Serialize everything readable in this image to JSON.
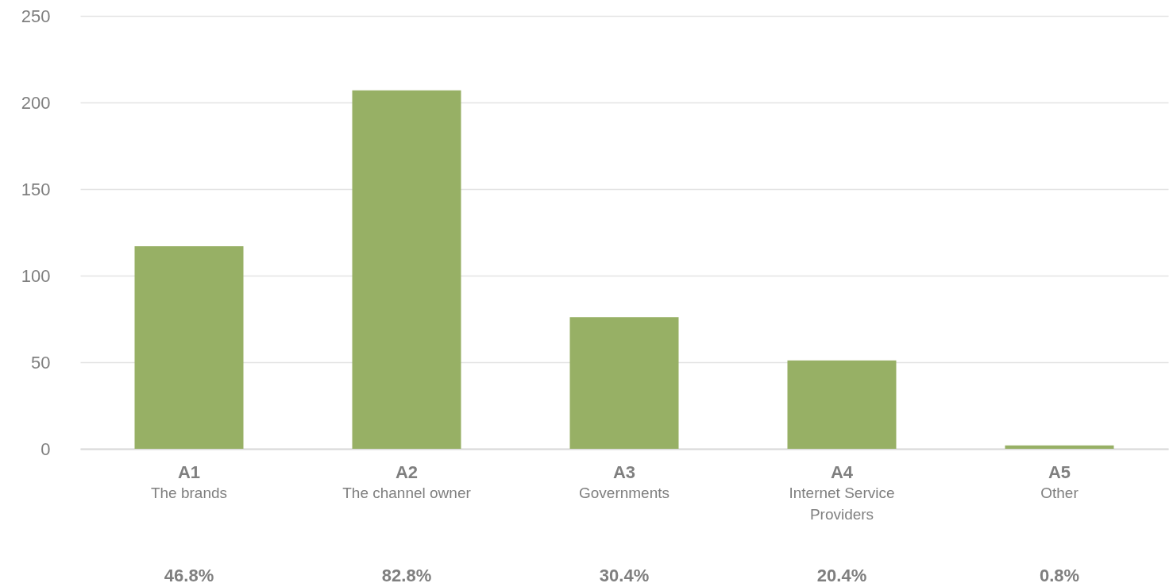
{
  "chart_data": {
    "type": "bar",
    "categories": [
      "A1\nThe brands\n46.8%",
      "A2\nThe channel owner\n82.8%",
      "A3\nGovernments\n30.4%",
      "A4\nInternet Service\nProviders\n20.4%",
      "A5\nOther\n0.8%"
    ],
    "values": [
      117,
      207,
      76,
      51,
      2
    ],
    "color": "#97b065",
    "ylim": [
      0,
      250
    ],
    "yticks": [
      0,
      50,
      100,
      150,
      200,
      250
    ],
    "grid": "y"
  }
}
